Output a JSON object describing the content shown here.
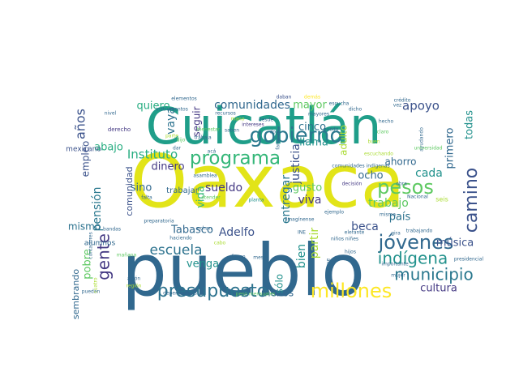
{
  "colors": {
    "background": "#ffffff",
    "palette": [
      "#440154",
      "#3b528b",
      "#2c728e",
      "#21918c",
      "#27ad81",
      "#5ec962",
      "#aadc32",
      "#fde725",
      "#e2e418",
      "#1f9e89"
    ]
  },
  "words": [
    {
      "text": "Oaxaca",
      "color": "#e2e418"
    },
    {
      "text": "pueblo",
      "color": "#31688e"
    },
    {
      "text": "Cuicatlán",
      "color": "#1f9e89"
    },
    {
      "text": "programa",
      "color": "#35b779"
    },
    {
      "text": "gobierno",
      "color": "#2a788e"
    },
    {
      "text": "presupuesto",
      "color": "#2c728e"
    },
    {
      "text": "millones",
      "color": "#fde725"
    },
    {
      "text": "jóvenes",
      "color": "#31688e"
    },
    {
      "text": "pesos",
      "color": "#5ec962"
    },
    {
      "text": "camino",
      "color": "#3b528b"
    },
    {
      "text": "municipio",
      "color": "#2a788e"
    },
    {
      "text": "indígena",
      "color": "#21918c"
    },
    {
      "text": "gente",
      "color": "#443983"
    },
    {
      "text": "escuela",
      "color": "#2c728e"
    },
    {
      "text": "Instituto",
      "color": "#27ad81"
    },
    {
      "text": "comunidades",
      "color": "#31688e"
    },
    {
      "text": "apoyo",
      "color": "#3b528b"
    },
    {
      "text": "años",
      "color": "#3b528b"
    },
    {
      "text": "quiero",
      "color": "#27ad81"
    },
    {
      "text": "mayor",
      "color": "#5ec962"
    },
    {
      "text": "cinco",
      "color": "#2c728e"
    },
    {
      "text": "llama",
      "color": "#21918c"
    },
    {
      "text": "adulto",
      "color": "#aadc32"
    },
    {
      "text": "primero",
      "color": "#31688e"
    },
    {
      "text": "todas",
      "color": "#21918c"
    },
    {
      "text": "justicia",
      "color": "#3b528b"
    },
    {
      "text": "dinero",
      "color": "#443983"
    },
    {
      "text": "abajo",
      "color": "#27ad81"
    },
    {
      "text": "vaya",
      "color": "#2c728e"
    },
    {
      "text": "seguir",
      "color": "#443983"
    },
    {
      "text": "empleo",
      "color": "#3b528b"
    },
    {
      "text": "comunidad",
      "color": "#3b528b"
    },
    {
      "text": "vida",
      "color": "#35b779"
    },
    {
      "text": "sino",
      "color": "#31688e"
    },
    {
      "text": "sueldo",
      "color": "#443983"
    },
    {
      "text": "entregar",
      "color": "#2a788e"
    },
    {
      "text": "cada",
      "color": "#21918c"
    },
    {
      "text": "ahorro",
      "color": "#31688e"
    },
    {
      "text": "ocho",
      "color": "#31688e"
    },
    {
      "text": "trabajo",
      "color": "#5ec962"
    },
    {
      "text": "viva",
      "color": "#443983"
    },
    {
      "text": "gusto",
      "color": "#5ec962"
    },
    {
      "text": "beca",
      "color": "#3b528b"
    },
    {
      "text": "país",
      "color": "#2c728e"
    },
    {
      "text": "Tabasco",
      "color": "#31688e"
    },
    {
      "text": "Adelfo",
      "color": "#3b528b"
    },
    {
      "text": "pensión",
      "color": "#2a788e"
    },
    {
      "text": "mismo",
      "color": "#2c728e"
    },
    {
      "text": "alumnos",
      "color": "#31688e"
    },
    {
      "text": "venga",
      "color": "#21918c"
    },
    {
      "text": "bien",
      "color": "#21918c"
    },
    {
      "text": "partir",
      "color": "#aadc32"
    },
    {
      "text": "música",
      "color": "#3b528b"
    },
    {
      "text": "pobre",
      "color": "#5ec962"
    },
    {
      "text": "sembrando",
      "color": "#31688e"
    },
    {
      "text": "menos",
      "color": "#31688e"
    },
    {
      "text": "sólo",
      "color": "#21918c"
    },
    {
      "text": "cultura",
      "color": "#443983"
    },
    {
      "text": "trabajar",
      "color": "#31688e"
    },
    {
      "text": "mexicano",
      "color": "#3b528b"
    },
    {
      "text": "derecho",
      "color": "#443983"
    },
    {
      "text": "elementos",
      "color": "#31688e"
    },
    {
      "text": "instrumentos",
      "color": "#31688e"
    },
    {
      "text": "nivel",
      "color": "#31688e"
    },
    {
      "text": "mano",
      "color": "#aadc32"
    },
    {
      "text": "daban",
      "color": "#3b528b"
    },
    {
      "text": "demás",
      "color": "#fde725"
    },
    {
      "text": "crédito",
      "color": "#31688e"
    },
    {
      "text": "hecho",
      "color": "#31688e"
    },
    {
      "text": "vez",
      "color": "#31688e"
    },
    {
      "text": "bienestar",
      "color": "#5ec962"
    },
    {
      "text": "parte",
      "color": "#aadc32"
    },
    {
      "text": "intereses",
      "color": "#443983"
    },
    {
      "text": "saben",
      "color": "#31688e"
    },
    {
      "text": "trabaja",
      "color": "#31688e"
    },
    {
      "text": "dijo",
      "color": "#5ec962"
    },
    {
      "text": "desde",
      "color": "#31688e"
    },
    {
      "text": "ayudando",
      "color": "#31688e"
    },
    {
      "text": "universidad",
      "color": "#5ec962"
    },
    {
      "text": "comunidades indígenas",
      "color": "#31688e"
    },
    {
      "text": "seis",
      "color": "#aadc32"
    },
    {
      "text": "Nacional",
      "color": "#31688e"
    },
    {
      "text": "asamblea",
      "color": "#31688e"
    },
    {
      "text": "decisión",
      "color": "#443983"
    },
    {
      "text": "obra",
      "color": "#31688e"
    },
    {
      "text": "falta",
      "color": "#31688e"
    },
    {
      "text": "atender",
      "color": "#5ec962"
    },
    {
      "text": "planta",
      "color": "#21918c"
    },
    {
      "text": "puedo",
      "color": "#31688e"
    },
    {
      "text": "Imagínense",
      "color": "#31688e"
    },
    {
      "text": "preparatoria",
      "color": "#31688e"
    },
    {
      "text": "bandas",
      "color": "#31688e"
    },
    {
      "text": "mañana",
      "color": "#5ec962"
    },
    {
      "text": "echan",
      "color": "#31688e"
    },
    {
      "text": "haciendo",
      "color": "#31688e"
    },
    {
      "text": "ejemplo",
      "color": "#31688e"
    },
    {
      "text": "misma",
      "color": "#31688e"
    },
    {
      "text": "elefante",
      "color": "#31688e"
    },
    {
      "text": "niños niñes",
      "color": "#31688e"
    },
    {
      "text": "hijos",
      "color": "#31688e"
    },
    {
      "text": "gira",
      "color": "#31688e"
    },
    {
      "text": "importante",
      "color": "#31688e"
    },
    {
      "text": "presidencial",
      "color": "#31688e"
    },
    {
      "text": "aunque",
      "color": "#31688e"
    },
    {
      "text": "meses",
      "color": "#31688e"
    },
    {
      "text": "INE",
      "color": "#31688e"
    },
    {
      "text": "fuego",
      "color": "#31688e"
    },
    {
      "text": "cabo",
      "color": "#aadc32"
    },
    {
      "text": "puedan",
      "color": "#31688e"
    },
    {
      "text": "región",
      "color": "#aadc32"
    },
    {
      "text": "dependencias",
      "color": "#31688e"
    },
    {
      "text": "peso mensuales",
      "color": "#5ec962"
    },
    {
      "text": "avión",
      "color": "#31688e"
    },
    {
      "text": "cuatro",
      "color": "#aadc32"
    },
    {
      "text": "trabajando",
      "color": "#31688e"
    },
    {
      "text": "mujer",
      "color": "#31688e"
    },
    {
      "text": "contadores",
      "color": "#31688e"
    },
    {
      "text": "escucha",
      "color": "#31688e"
    },
    {
      "text": "dicho",
      "color": "#31688e"
    },
    {
      "text": "mayores",
      "color": "#31688e"
    },
    {
      "text": "familias",
      "color": "#31688e"
    },
    {
      "text": "buen",
      "color": "#aadc32"
    },
    {
      "text": "claro",
      "color": "#5ec962"
    },
    {
      "text": "doy",
      "color": "#31688e"
    },
    {
      "text": "recursos",
      "color": "#31688e"
    },
    {
      "text": "escuchando",
      "color": "#aadc32"
    },
    {
      "text": "dar",
      "color": "#31688e"
    },
    {
      "text": "acá",
      "color": "#31688e"
    }
  ]
}
